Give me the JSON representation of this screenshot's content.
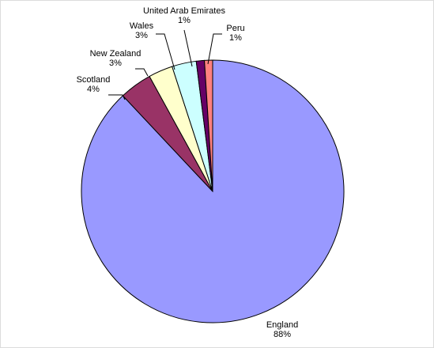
{
  "chart_data": {
    "type": "pie",
    "title": "",
    "legend": "none",
    "slices": [
      {
        "label": "England",
        "percent_text": "88%",
        "value": 88,
        "color": "#9999FF"
      },
      {
        "label": "Scotland",
        "percent_text": "4%",
        "value": 4,
        "color": "#993366"
      },
      {
        "label": "New Zealand",
        "percent_text": "3%",
        "value": 3,
        "color": "#FFFFCC"
      },
      {
        "label": "Wales",
        "percent_text": "3%",
        "value": 3,
        "color": "#CCFFFF"
      },
      {
        "label": "United Arab Emirates",
        "percent_text": "1%",
        "value": 1,
        "color": "#660066"
      },
      {
        "label": "Peru",
        "percent_text": "1%",
        "value": 1,
        "color": "#FF8080"
      }
    ]
  }
}
